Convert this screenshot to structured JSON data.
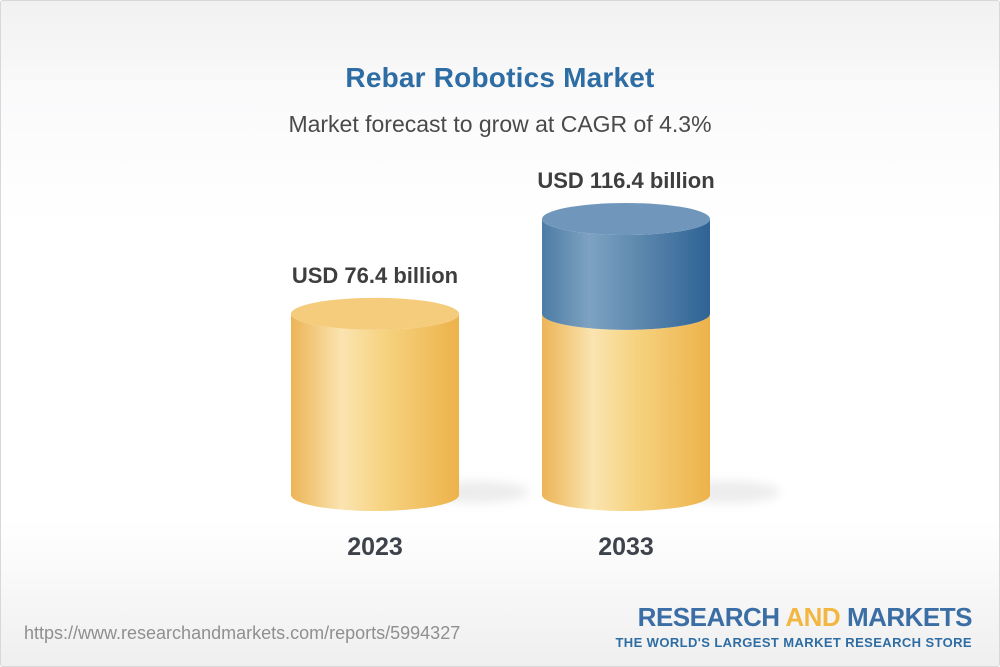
{
  "header": {
    "title": "Rebar Robotics Market",
    "subtitle": "Market forecast to grow at CAGR of 4.3%"
  },
  "chart_data": {
    "type": "bar",
    "categories": [
      "2023",
      "2033"
    ],
    "values": [
      76.4,
      116.4
    ],
    "value_labels": [
      "USD 76.4 billion",
      "USD 116.4 billion"
    ],
    "unit": "USD billion",
    "title": "Rebar Robotics Market",
    "subtitle": "Market forecast to grow at CAGR of 4.3%",
    "cagr_percent": 4.3,
    "base_value": 76.4,
    "growth_value": 40.0,
    "legend_position": "none",
    "grid": false,
    "axes": "none",
    "bar_style": "3d-cylinder",
    "colors": {
      "base_segment": "#F3C76C",
      "growth_segment": "#4F80AA",
      "value_label_text": "#3E3E3E",
      "category_label_text": "#3E434B"
    }
  },
  "footer": {
    "url": "https://www.researchandmarkets.com/reports/5994327",
    "logo": {
      "research": "RESEARCH",
      "and": "AND",
      "markets": "MARKETS",
      "tagline": "THE WORLD'S LARGEST MARKET RESEARCH STORE",
      "brand_blue": "#3A6EA5",
      "brand_gold": "#F2B742"
    }
  },
  "theme": {
    "title_color": "#2E6DA4",
    "subtitle_color": "#4A4A4A",
    "url_color": "#8F8F8F"
  }
}
